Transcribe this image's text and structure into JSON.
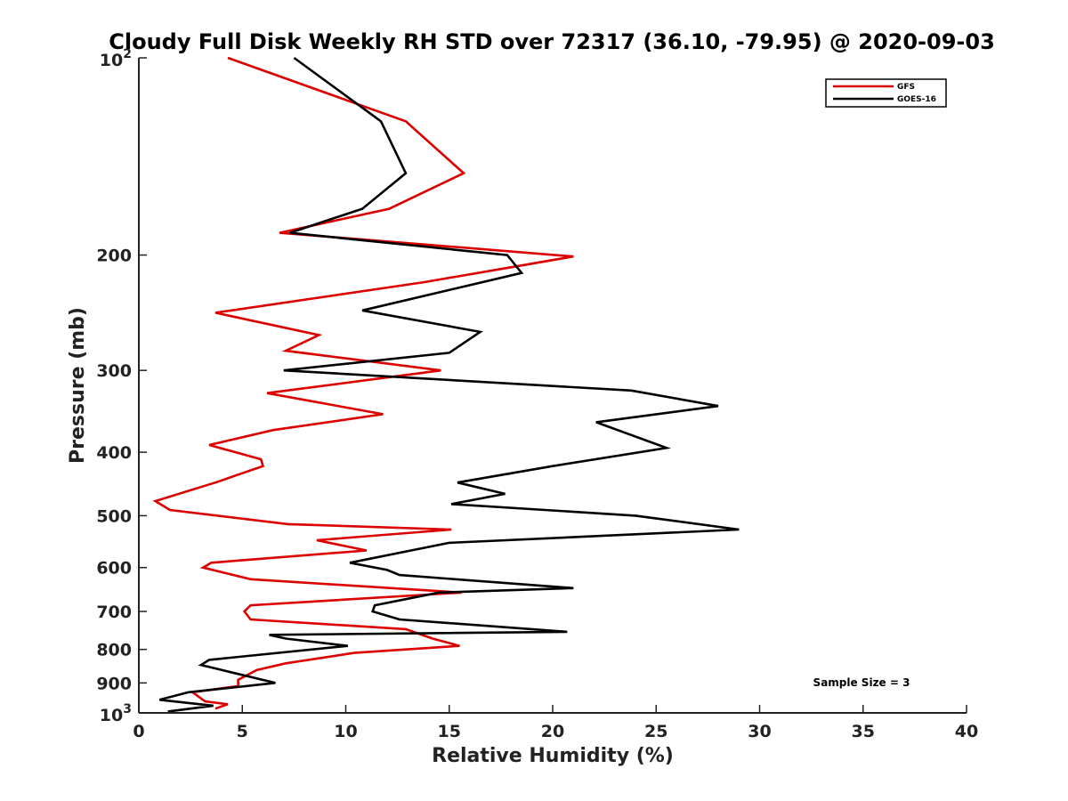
{
  "chart_data": {
    "type": "line",
    "title": "Cloudy Full Disk Weekly RH STD over 72317 (36.10, -79.95) @ 2020-09-03",
    "xlabel": "Relative Humidity (%)",
    "ylabel": "Pressure (mb)",
    "xlim": [
      0,
      40
    ],
    "ylim": [
      100,
      1000
    ],
    "yscale": "log",
    "y_reversed": true,
    "grid": false,
    "legend_location": "top-right",
    "x_ticks": [
      "0",
      "5",
      "10",
      "15",
      "20",
      "25",
      "30",
      "35",
      "40"
    ],
    "y_ticks": [
      {
        "value": 100,
        "base": "10",
        "exp": "2"
      },
      {
        "value": 200,
        "label": "200"
      },
      {
        "value": 300,
        "label": "300"
      },
      {
        "value": 400,
        "label": "400"
      },
      {
        "value": 500,
        "label": "500"
      },
      {
        "value": 600,
        "label": "600"
      },
      {
        "value": 700,
        "label": "700"
      },
      {
        "value": 800,
        "label": "800"
      },
      {
        "value": 900,
        "label": "900"
      },
      {
        "value": 1000,
        "base": "10",
        "exp": "3"
      }
    ],
    "annotation": "Sample Size = 3",
    "series": [
      {
        "name": "GFS",
        "color": "#dd0000",
        "points": [
          [
            4.3,
            100
          ],
          [
            12.9,
            125
          ],
          [
            15.7,
            150
          ],
          [
            12.1,
            170
          ],
          [
            6.8,
            185
          ],
          [
            21.0,
            201
          ],
          [
            13.8,
            220
          ],
          [
            3.7,
            245
          ],
          [
            8.7,
            265
          ],
          [
            7.1,
            280
          ],
          [
            14.6,
            300
          ],
          [
            6.2,
            325
          ],
          [
            11.8,
            350
          ],
          [
            6.5,
            370
          ],
          [
            3.4,
            390
          ],
          [
            5.9,
            410
          ],
          [
            6.0,
            420
          ],
          [
            3.7,
            445
          ],
          [
            0.8,
            475
          ],
          [
            1.5,
            490
          ],
          [
            7.2,
            515
          ],
          [
            15.1,
            525
          ],
          [
            8.6,
            545
          ],
          [
            11.0,
            565
          ],
          [
            3.5,
            590
          ],
          [
            3.1,
            600
          ],
          [
            5.4,
            625
          ],
          [
            15.6,
            655
          ],
          [
            5.4,
            685
          ],
          [
            5.1,
            700
          ],
          [
            5.4,
            720
          ],
          [
            12.9,
            745
          ],
          [
            14.2,
            770
          ],
          [
            15.5,
            790
          ],
          [
            10.4,
            810
          ],
          [
            7.1,
            840
          ],
          [
            5.7,
            860
          ],
          [
            4.8,
            890
          ],
          [
            4.8,
            910
          ],
          [
            2.6,
            930
          ],
          [
            3.2,
            960
          ],
          [
            4.3,
            970
          ],
          [
            3.7,
            985
          ]
        ]
      },
      {
        "name": "GOES-16",
        "color": "#000000",
        "points": [
          [
            7.5,
            100
          ],
          [
            11.7,
            125
          ],
          [
            12.9,
            150
          ],
          [
            10.8,
            170
          ],
          [
            7.3,
            185
          ],
          [
            17.8,
            200
          ],
          [
            18.5,
            213
          ],
          [
            10.8,
            243
          ],
          [
            16.5,
            262
          ],
          [
            15.0,
            282
          ],
          [
            7.0,
            300
          ],
          [
            23.8,
            322
          ],
          [
            28.0,
            340
          ],
          [
            22.1,
            360
          ],
          [
            25.5,
            394
          ],
          [
            20.0,
            420
          ],
          [
            15.4,
            445
          ],
          [
            17.7,
            463
          ],
          [
            15.1,
            480
          ],
          [
            24.0,
            500
          ],
          [
            29.0,
            525
          ],
          [
            15.0,
            550
          ],
          [
            10.2,
            590
          ],
          [
            12.0,
            605
          ],
          [
            12.6,
            616
          ],
          [
            21.0,
            645
          ],
          [
            14.5,
            655
          ],
          [
            11.4,
            685
          ],
          [
            11.3,
            700
          ],
          [
            12.6,
            720
          ],
          [
            20.7,
            752
          ],
          [
            6.3,
            760
          ],
          [
            7.1,
            770
          ],
          [
            10.1,
            790
          ],
          [
            3.4,
            830
          ],
          [
            3.0,
            845
          ],
          [
            6.6,
            900
          ],
          [
            2.4,
            930
          ],
          [
            1.0,
            955
          ],
          [
            3.6,
            975
          ],
          [
            1.4,
            995
          ]
        ]
      }
    ]
  }
}
